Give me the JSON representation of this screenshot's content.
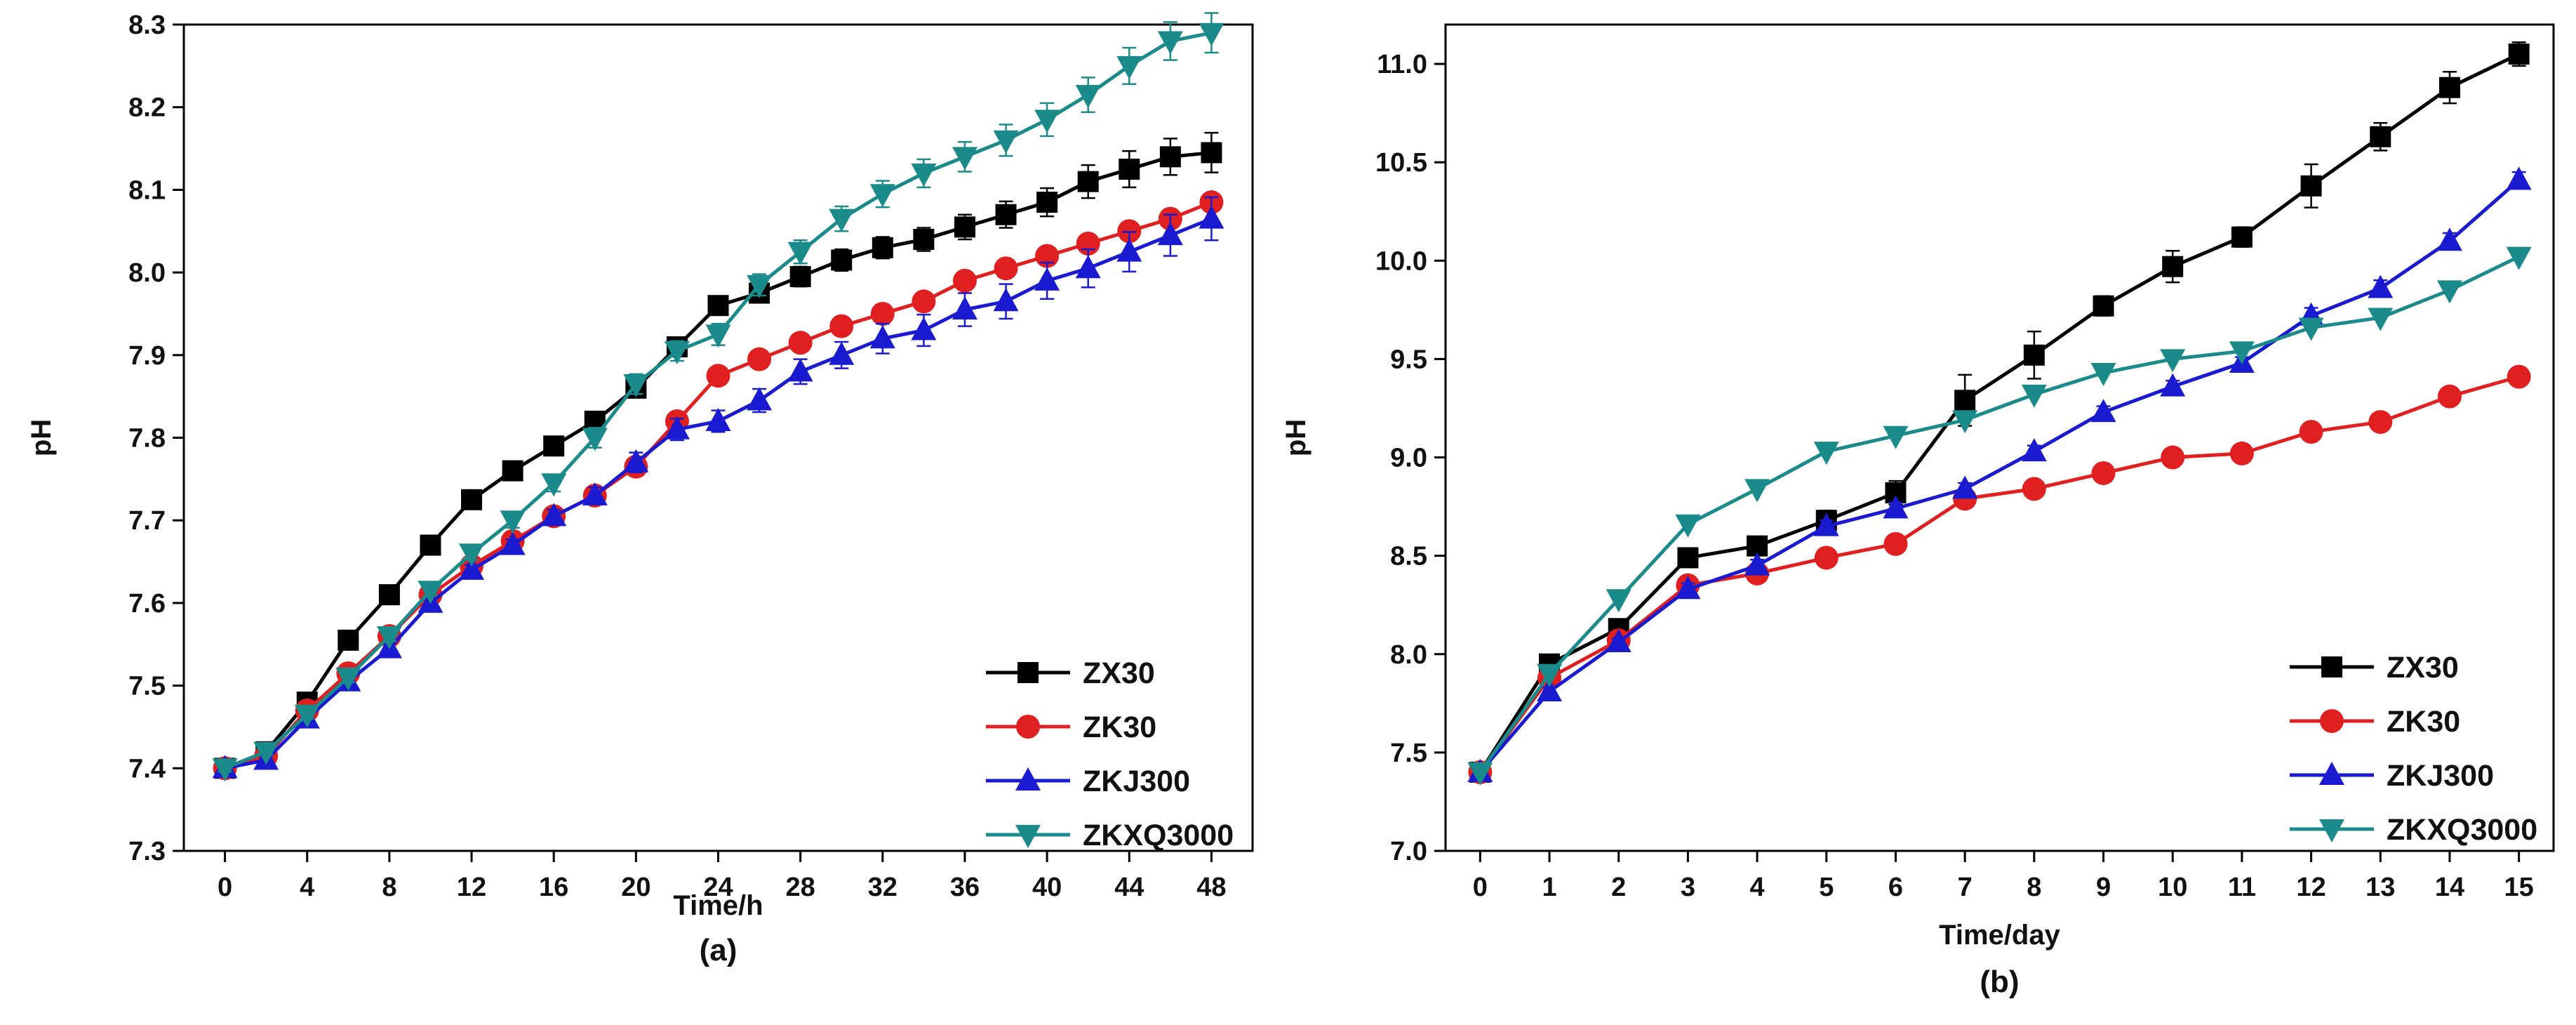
{
  "chart_data": [
    {
      "type": "line",
      "panel_label": "(a)",
      "xlabel": "Time/h",
      "ylabel": "pH",
      "xlim": [
        -2,
        50
      ],
      "ylim": [
        7.3,
        8.3
      ],
      "xticks": [
        0,
        4,
        8,
        12,
        16,
        20,
        24,
        28,
        32,
        36,
        40,
        44,
        48
      ],
      "yticks": [
        7.3,
        7.4,
        7.5,
        7.6,
        7.7,
        7.8,
        7.9,
        8.0,
        8.1,
        8.2,
        8.3
      ],
      "legend_position": "bottom-right",
      "x": [
        0,
        2,
        4,
        6,
        8,
        10,
        12,
        14,
        16,
        18,
        20,
        22,
        24,
        26,
        28,
        30,
        32,
        34,
        36,
        38,
        40,
        42,
        44,
        46,
        48
      ],
      "series": [
        {
          "name": "ZX30",
          "color": "#000000",
          "marker": "square",
          "values": [
            7.4,
            7.42,
            7.48,
            7.555,
            7.61,
            7.67,
            7.725,
            7.76,
            7.79,
            7.82,
            7.86,
            7.91,
            7.96,
            7.975,
            7.995,
            8.015,
            8.03,
            8.04,
            8.055,
            8.07,
            8.085,
            8.11,
            8.125,
            8.14,
            8.145
          ],
          "errors": [
            0.004,
            0.004,
            0.005,
            0.006,
            0.006,
            0.006,
            0.006,
            0.006,
            0.007,
            0.008,
            0.008,
            0.008,
            0.009,
            0.01,
            0.012,
            0.013,
            0.013,
            0.014,
            0.015,
            0.016,
            0.017,
            0.02,
            0.022,
            0.022,
            0.024
          ]
        },
        {
          "name": "ZK30",
          "color": "#e02020",
          "marker": "circle",
          "values": [
            7.4,
            7.415,
            7.47,
            7.515,
            7.56,
            7.61,
            7.645,
            7.675,
            7.705,
            7.73,
            7.765,
            7.82,
            7.875,
            7.895,
            7.915,
            7.935,
            7.95,
            7.965,
            7.99,
            8.005,
            8.02,
            8.035,
            8.05,
            8.065,
            8.085
          ]
        },
        {
          "name": "ZKJ300",
          "color": "#1a1ad0",
          "marker": "triangle-up",
          "values": [
            7.4,
            7.41,
            7.46,
            7.505,
            7.545,
            7.6,
            7.64,
            7.67,
            7.705,
            7.73,
            7.77,
            7.81,
            7.82,
            7.845,
            7.88,
            7.9,
            7.92,
            7.93,
            7.955,
            7.965,
            7.99,
            8.005,
            8.025,
            8.045,
            8.065
          ],
          "errors": [
            0.004,
            0.005,
            0.006,
            0.006,
            0.006,
            0.006,
            0.006,
            0.007,
            0.008,
            0.01,
            0.012,
            0.013,
            0.013,
            0.014,
            0.015,
            0.016,
            0.018,
            0.019,
            0.02,
            0.021,
            0.022,
            0.023,
            0.024,
            0.025,
            0.026
          ]
        },
        {
          "name": "ZKXQ3000",
          "color": "#1a8a8a",
          "marker": "triangle-down",
          "values": [
            7.4,
            7.42,
            7.465,
            7.51,
            7.56,
            7.615,
            7.66,
            7.7,
            7.745,
            7.8,
            7.865,
            7.905,
            7.925,
            7.985,
            8.025,
            8.065,
            8.095,
            8.12,
            8.14,
            8.16,
            8.185,
            8.215,
            8.25,
            8.28,
            8.29
          ],
          "errors": [
            0.004,
            0.004,
            0.005,
            0.006,
            0.006,
            0.006,
            0.008,
            0.009,
            0.01,
            0.012,
            0.012,
            0.012,
            0.013,
            0.013,
            0.014,
            0.015,
            0.016,
            0.017,
            0.018,
            0.019,
            0.02,
            0.021,
            0.022,
            0.023,
            0.024
          ]
        }
      ]
    },
    {
      "type": "line",
      "panel_label": "(b)",
      "xlabel": "Time/day",
      "ylabel": "pH",
      "xlim": [
        -0.5,
        15.5
      ],
      "ylim": [
        7.0,
        11.2
      ],
      "xticks": [
        0,
        1,
        2,
        3,
        4,
        5,
        6,
        7,
        8,
        9,
        10,
        11,
        12,
        13,
        14,
        15
      ],
      "yticks": [
        7.0,
        7.5,
        8.0,
        8.5,
        9.0,
        9.5,
        10.0,
        10.5,
        11.0
      ],
      "ytick_labels": [
        "7.0",
        "7.5",
        "8.0",
        "8.5",
        "9.0",
        "9.5",
        "10.0",
        "10.5",
        "11.0"
      ],
      "legend_position": "bottom-right",
      "x": [
        0,
        1,
        2,
        3,
        4,
        5,
        6,
        7,
        8,
        9,
        10,
        11,
        12,
        13,
        14,
        15
      ],
      "series": [
        {
          "name": "ZX30",
          "color": "#000000",
          "marker": "square",
          "values": [
            7.4,
            7.95,
            8.13,
            8.49,
            8.55,
            8.68,
            8.82,
            9.29,
            9.52,
            9.77,
            9.97,
            10.12,
            10.38,
            10.63,
            10.88,
            11.05
          ],
          "errors": [
            0.02,
            0.03,
            0.03,
            0.04,
            0.04,
            0.05,
            0.06,
            0.13,
            0.12,
            0.05,
            0.08,
            0.05,
            0.11,
            0.07,
            0.08,
            0.06
          ]
        },
        {
          "name": "ZK30",
          "color": "#e02020",
          "marker": "circle",
          "values": [
            7.4,
            7.88,
            8.07,
            8.35,
            8.41,
            8.49,
            8.56,
            8.79,
            8.84,
            8.92,
            9.0,
            9.02,
            9.13,
            9.18,
            9.31,
            9.41
          ]
        },
        {
          "name": "ZKJ300",
          "color": "#1a1ad0",
          "marker": "triangle-up",
          "values": [
            7.4,
            7.81,
            8.06,
            8.33,
            8.45,
            8.65,
            8.74,
            8.84,
            9.03,
            9.23,
            9.36,
            9.48,
            9.72,
            9.86,
            10.1,
            10.41
          ],
          "errors": [
            0.02,
            0.02,
            0.02,
            0.03,
            0.03,
            0.03,
            0.03,
            0.03,
            0.03,
            0.03,
            0.03,
            0.03,
            0.04,
            0.04,
            0.04,
            0.04
          ]
        },
        {
          "name": "ZKXQ3000",
          "color": "#1a8a8a",
          "marker": "triangle-down",
          "values": [
            7.4,
            7.9,
            8.28,
            8.66,
            8.84,
            9.03,
            9.11,
            9.19,
            9.32,
            9.43,
            9.5,
            9.54,
            9.66,
            9.71,
            9.85,
            10.02
          ]
        }
      ]
    }
  ]
}
